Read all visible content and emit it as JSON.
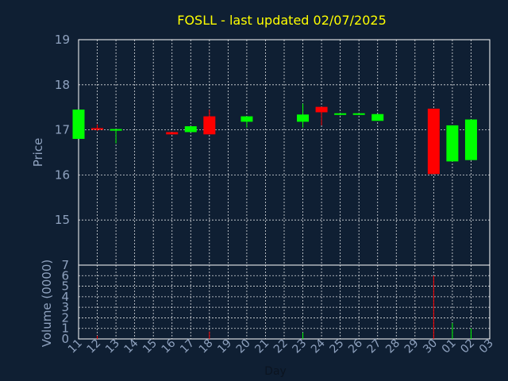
{
  "chart_data": [
    {
      "type": "candlestick",
      "title": "FOSLL - last updated 02/07/2025",
      "ylabel": "Price",
      "ylim": [
        14.0,
        19.0
      ],
      "yticks": [
        15,
        16,
        17,
        18,
        19
      ],
      "grid": true,
      "up_color": "#00ff00",
      "down_color": "#ff0000",
      "categories": [
        "11",
        "12",
        "13",
        "14",
        "15",
        "16",
        "17",
        "18",
        "19",
        "20",
        "21",
        "22",
        "23",
        "24",
        "25",
        "26",
        "27",
        "28",
        "29",
        "30",
        "01",
        "02",
        "03"
      ],
      "candles": [
        {
          "x": "11",
          "open": 16.8,
          "high": 17.45,
          "low": 16.8,
          "close": 17.45
        },
        {
          "x": "12",
          "open": 17.02,
          "high": 17.12,
          "low": 16.98,
          "close": 17.0
        },
        {
          "x": "13",
          "open": 16.98,
          "high": 17.0,
          "low": 16.7,
          "close": 17.0
        },
        {
          "x": "16",
          "open": 16.95,
          "high": 16.95,
          "low": 16.9,
          "close": 16.9
        },
        {
          "x": "17",
          "open": 16.95,
          "high": 17.08,
          "low": 16.95,
          "close": 17.08
        },
        {
          "x": "18",
          "open": 17.3,
          "high": 17.45,
          "low": 16.9,
          "close": 16.9
        },
        {
          "x": "20",
          "open": 17.18,
          "high": 17.3,
          "low": 17.05,
          "close": 17.3
        },
        {
          "x": "23",
          "open": 17.18,
          "high": 17.58,
          "low": 17.05,
          "close": 17.34
        },
        {
          "x": "24",
          "open": 17.51,
          "high": 17.51,
          "low": 17.1,
          "close": 17.39
        },
        {
          "x": "25",
          "open": 17.32,
          "high": 17.35,
          "low": 17.32,
          "close": 17.35
        },
        {
          "x": "26",
          "open": 17.33,
          "high": 17.35,
          "low": 17.33,
          "close": 17.35
        },
        {
          "x": "27",
          "open": 17.2,
          "high": 17.35,
          "low": 17.2,
          "close": 17.35
        },
        {
          "x": "30",
          "open": 17.47,
          "high": 17.47,
          "low": 16.02,
          "close": 16.02
        },
        {
          "x": "01",
          "open": 16.3,
          "high": 17.1,
          "low": 16.3,
          "close": 17.1
        },
        {
          "x": "02",
          "open": 16.33,
          "high": 17.23,
          "low": 16.33,
          "close": 17.23
        }
      ]
    },
    {
      "type": "bar",
      "ylabel": "Volume (0000)",
      "xlabel": "Day",
      "ylim": [
        0,
        7
      ],
      "yticks": [
        0,
        1,
        2,
        3,
        4,
        5,
        6,
        7
      ],
      "grid": true,
      "categories": [
        "11",
        "12",
        "13",
        "14",
        "15",
        "16",
        "17",
        "18",
        "19",
        "20",
        "21",
        "22",
        "23",
        "24",
        "25",
        "26",
        "27",
        "28",
        "29",
        "30",
        "01",
        "02",
        "03"
      ],
      "bars": [
        {
          "x": "12",
          "value": 0.3,
          "color": "#ff0000"
        },
        {
          "x": "18",
          "value": 0.7,
          "color": "#ff0000"
        },
        {
          "x": "23",
          "value": 0.6,
          "color": "#00ff00"
        },
        {
          "x": "30",
          "value": 6.0,
          "color": "#ff0000"
        },
        {
          "x": "01",
          "value": 1.5,
          "color": "#00ff00"
        },
        {
          "x": "02",
          "value": 1.0,
          "color": "#00ff00"
        }
      ]
    }
  ]
}
